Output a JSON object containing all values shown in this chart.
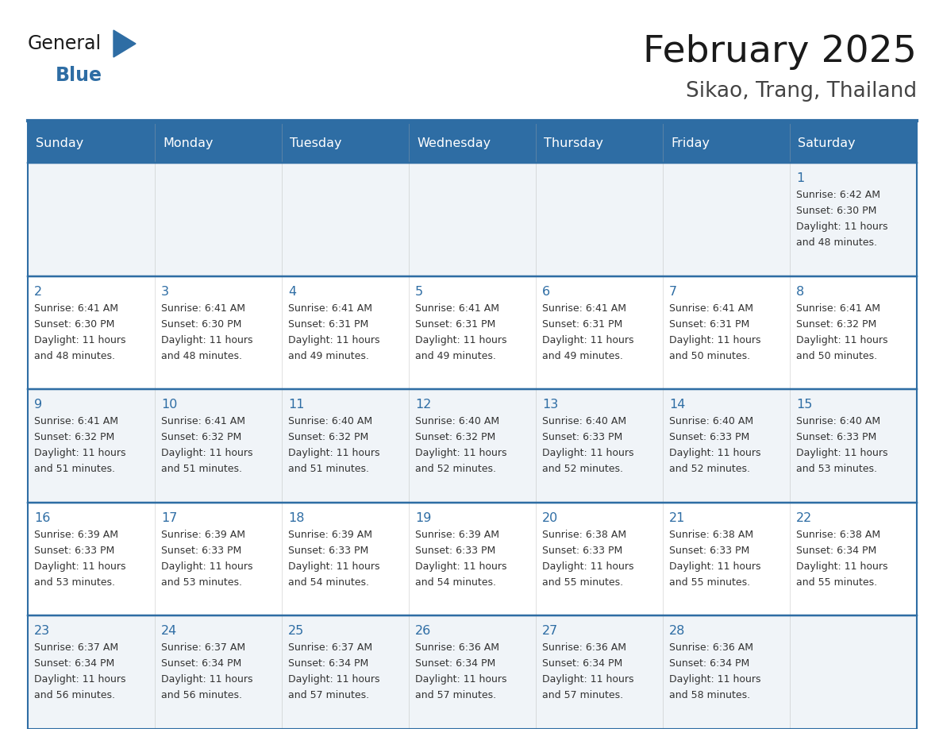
{
  "title": "February 2025",
  "subtitle": "Sikao, Trang, Thailand",
  "header_bg": "#2E6DA4",
  "header_text": "#FFFFFF",
  "row_bg_odd": "#F0F4F8",
  "row_bg_even": "#FFFFFF",
  "border_color": "#2E6DA4",
  "day_names": [
    "Sunday",
    "Monday",
    "Tuesday",
    "Wednesday",
    "Thursday",
    "Friday",
    "Saturday"
  ],
  "title_color": "#1a1a1a",
  "subtitle_color": "#444444",
  "day_num_color": "#2E6DA4",
  "cell_text_color": "#333333",
  "logo_general_color": "#1a1a1a",
  "logo_blue_color": "#2E6DA4",
  "logo_triangle_color": "#2E6DA4",
  "calendar": [
    [
      null,
      null,
      null,
      null,
      null,
      null,
      {
        "day": 1,
        "sunrise": "6:42 AM",
        "sunset": "6:30 PM",
        "daylight_hrs": "11 hours",
        "daylight_min": "and 48 minutes."
      }
    ],
    [
      {
        "day": 2,
        "sunrise": "6:41 AM",
        "sunset": "6:30 PM",
        "daylight_hrs": "11 hours",
        "daylight_min": "and 48 minutes."
      },
      {
        "day": 3,
        "sunrise": "6:41 AM",
        "sunset": "6:30 PM",
        "daylight_hrs": "11 hours",
        "daylight_min": "and 48 minutes."
      },
      {
        "day": 4,
        "sunrise": "6:41 AM",
        "sunset": "6:31 PM",
        "daylight_hrs": "11 hours",
        "daylight_min": "and 49 minutes."
      },
      {
        "day": 5,
        "sunrise": "6:41 AM",
        "sunset": "6:31 PM",
        "daylight_hrs": "11 hours",
        "daylight_min": "and 49 minutes."
      },
      {
        "day": 6,
        "sunrise": "6:41 AM",
        "sunset": "6:31 PM",
        "daylight_hrs": "11 hours",
        "daylight_min": "and 49 minutes."
      },
      {
        "day": 7,
        "sunrise": "6:41 AM",
        "sunset": "6:31 PM",
        "daylight_hrs": "11 hours",
        "daylight_min": "and 50 minutes."
      },
      {
        "day": 8,
        "sunrise": "6:41 AM",
        "sunset": "6:32 PM",
        "daylight_hrs": "11 hours",
        "daylight_min": "and 50 minutes."
      }
    ],
    [
      {
        "day": 9,
        "sunrise": "6:41 AM",
        "sunset": "6:32 PM",
        "daylight_hrs": "11 hours",
        "daylight_min": "and 51 minutes."
      },
      {
        "day": 10,
        "sunrise": "6:41 AM",
        "sunset": "6:32 PM",
        "daylight_hrs": "11 hours",
        "daylight_min": "and 51 minutes."
      },
      {
        "day": 11,
        "sunrise": "6:40 AM",
        "sunset": "6:32 PM",
        "daylight_hrs": "11 hours",
        "daylight_min": "and 51 minutes."
      },
      {
        "day": 12,
        "sunrise": "6:40 AM",
        "sunset": "6:32 PM",
        "daylight_hrs": "11 hours",
        "daylight_min": "and 52 minutes."
      },
      {
        "day": 13,
        "sunrise": "6:40 AM",
        "sunset": "6:33 PM",
        "daylight_hrs": "11 hours",
        "daylight_min": "and 52 minutes."
      },
      {
        "day": 14,
        "sunrise": "6:40 AM",
        "sunset": "6:33 PM",
        "daylight_hrs": "11 hours",
        "daylight_min": "and 52 minutes."
      },
      {
        "day": 15,
        "sunrise": "6:40 AM",
        "sunset": "6:33 PM",
        "daylight_hrs": "11 hours",
        "daylight_min": "and 53 minutes."
      }
    ],
    [
      {
        "day": 16,
        "sunrise": "6:39 AM",
        "sunset": "6:33 PM",
        "daylight_hrs": "11 hours",
        "daylight_min": "and 53 minutes."
      },
      {
        "day": 17,
        "sunrise": "6:39 AM",
        "sunset": "6:33 PM",
        "daylight_hrs": "11 hours",
        "daylight_min": "and 53 minutes."
      },
      {
        "day": 18,
        "sunrise": "6:39 AM",
        "sunset": "6:33 PM",
        "daylight_hrs": "11 hours",
        "daylight_min": "and 54 minutes."
      },
      {
        "day": 19,
        "sunrise": "6:39 AM",
        "sunset": "6:33 PM",
        "daylight_hrs": "11 hours",
        "daylight_min": "and 54 minutes."
      },
      {
        "day": 20,
        "sunrise": "6:38 AM",
        "sunset": "6:33 PM",
        "daylight_hrs": "11 hours",
        "daylight_min": "and 55 minutes."
      },
      {
        "day": 21,
        "sunrise": "6:38 AM",
        "sunset": "6:33 PM",
        "daylight_hrs": "11 hours",
        "daylight_min": "and 55 minutes."
      },
      {
        "day": 22,
        "sunrise": "6:38 AM",
        "sunset": "6:34 PM",
        "daylight_hrs": "11 hours",
        "daylight_min": "and 55 minutes."
      }
    ],
    [
      {
        "day": 23,
        "sunrise": "6:37 AM",
        "sunset": "6:34 PM",
        "daylight_hrs": "11 hours",
        "daylight_min": "and 56 minutes."
      },
      {
        "day": 24,
        "sunrise": "6:37 AM",
        "sunset": "6:34 PM",
        "daylight_hrs": "11 hours",
        "daylight_min": "and 56 minutes."
      },
      {
        "day": 25,
        "sunrise": "6:37 AM",
        "sunset": "6:34 PM",
        "daylight_hrs": "11 hours",
        "daylight_min": "and 57 minutes."
      },
      {
        "day": 26,
        "sunrise": "6:36 AM",
        "sunset": "6:34 PM",
        "daylight_hrs": "11 hours",
        "daylight_min": "and 57 minutes."
      },
      {
        "day": 27,
        "sunrise": "6:36 AM",
        "sunset": "6:34 PM",
        "daylight_hrs": "11 hours",
        "daylight_min": "and 57 minutes."
      },
      {
        "day": 28,
        "sunrise": "6:36 AM",
        "sunset": "6:34 PM",
        "daylight_hrs": "11 hours",
        "daylight_min": "and 58 minutes."
      },
      null
    ]
  ]
}
